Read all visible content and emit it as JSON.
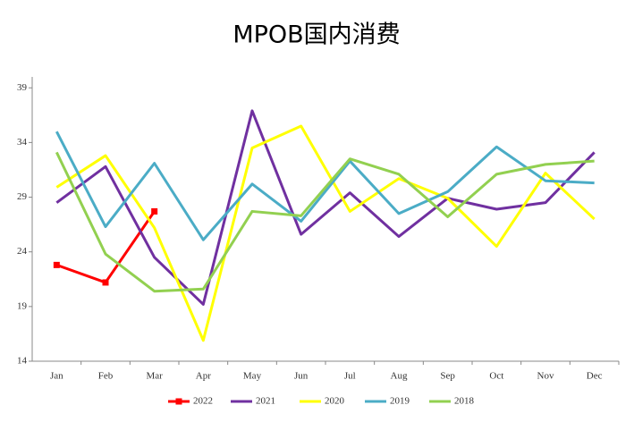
{
  "chart_data": {
    "type": "line",
    "title": "MPOB国内消费",
    "categories": [
      "Jan",
      "Feb",
      "Mar",
      "Apr",
      "May",
      "Jun",
      "Jul",
      "Aug",
      "Sep",
      "Oct",
      "Nov",
      "Dec"
    ],
    "series": [
      {
        "name": "2022",
        "color": "#ff0000",
        "marker": "square",
        "values": [
          22.8,
          21.2,
          27.7,
          null,
          null,
          null,
          null,
          null,
          null,
          null,
          null,
          null
        ]
      },
      {
        "name": "2021",
        "color": "#7030a0",
        "values": [
          28.5,
          31.8,
          23.5,
          19.2,
          36.9,
          25.6,
          29.4,
          25.4,
          28.9,
          27.9,
          28.5,
          33.1
        ]
      },
      {
        "name": "2020",
        "color": "#ffff00",
        "values": [
          29.9,
          32.8,
          26.2,
          15.9,
          33.5,
          35.5,
          27.7,
          30.7,
          28.9,
          24.5,
          31.2,
          27.0
        ]
      },
      {
        "name": "2019",
        "color": "#4bacc6",
        "values": [
          35.0,
          26.3,
          32.1,
          25.1,
          30.2,
          26.8,
          32.3,
          27.5,
          29.5,
          33.6,
          30.5,
          30.3
        ]
      },
      {
        "name": "2018",
        "color": "#92d050",
        "values": [
          33.1,
          23.8,
          20.4,
          20.6,
          27.7,
          27.3,
          32.5,
          31.1,
          27.2,
          31.1,
          32.0,
          32.3
        ]
      }
    ],
    "ylim": [
      14,
      40
    ],
    "yticks": [
      14,
      19,
      24,
      29,
      34,
      39
    ],
    "grid": false,
    "legend": "bottom"
  }
}
